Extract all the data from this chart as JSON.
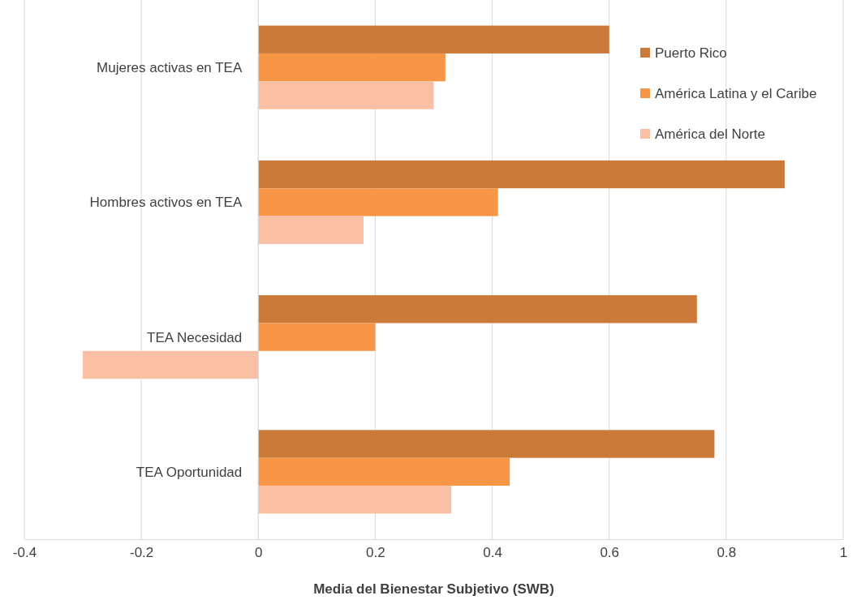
{
  "chart_data": {
    "type": "bar",
    "orientation": "horizontal",
    "xlabel": "Media del Bienestar Subjetivo (SWB)",
    "categories": [
      "Mujeres activas en TEA",
      "Hombres activos en TEA",
      "TEA Necesidad",
      "TEA Oportunidad"
    ],
    "series": [
      {
        "name": "Puerto Rico",
        "color": "#cc7a3a",
        "values": [
          0.6,
          0.9,
          0.75,
          0.78
        ]
      },
      {
        "name": "América Latina y el Caribe",
        "color": "#f79646",
        "values": [
          0.32,
          0.41,
          0.2,
          0.43
        ]
      },
      {
        "name": "América del Norte",
        "color": "#fac0a5",
        "values": [
          0.3,
          0.18,
          -0.3,
          0.33
        ]
      }
    ],
    "xlim": [
      -0.4,
      1
    ],
    "xticks": [
      -0.4,
      -0.2,
      0,
      0.2,
      0.4,
      0.6,
      0.8,
      1
    ],
    "grid": "x",
    "legend": "top right"
  }
}
